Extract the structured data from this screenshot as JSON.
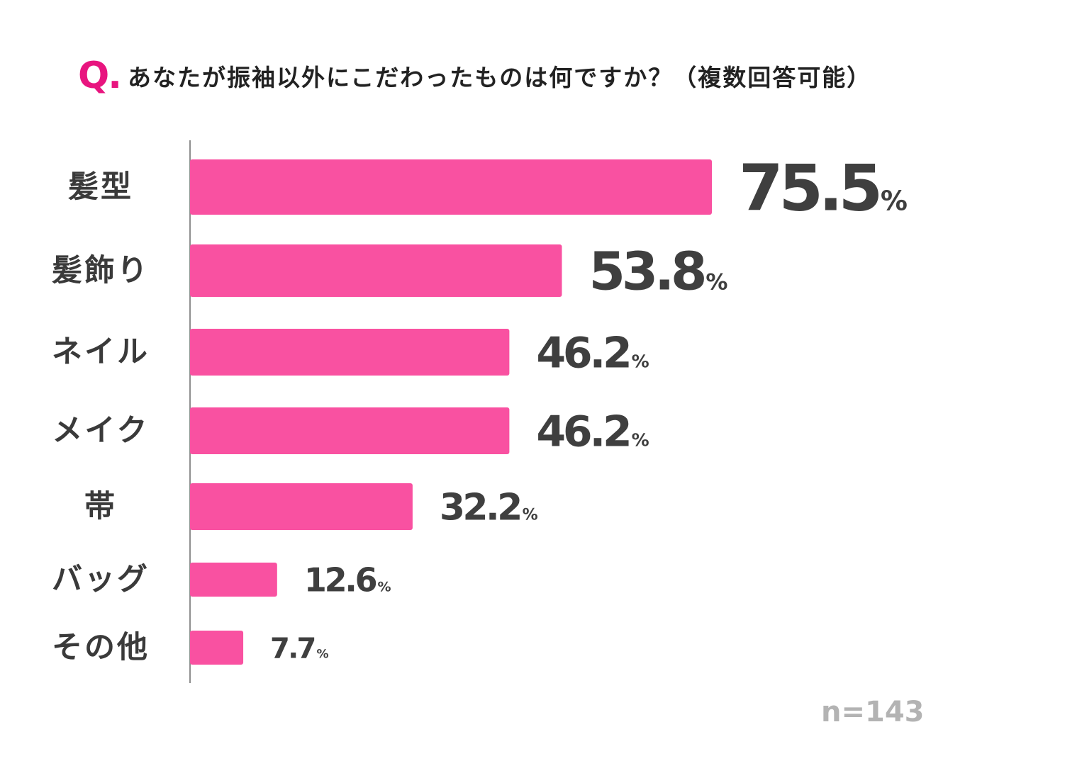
{
  "title": {
    "prefix": "Q.",
    "text": "あなたが振袖以外にこだわったものは何ですか？（複数回答可能）"
  },
  "sample_size": "n=143",
  "colors": {
    "accent": "#e8157f",
    "bar": "#f951a1",
    "label": "#3a3a3a",
    "sample_size": "#b3b3b3"
  },
  "chart_data": {
    "type": "bar",
    "orientation": "horizontal",
    "title": "あなたが振袖以外にこだわったものは何ですか？（複数回答可能）",
    "categories": [
      "髪型",
      "髪飾り",
      "ネイル",
      "メイク",
      "帯",
      "バッグ",
      "その他"
    ],
    "values": [
      75.5,
      53.8,
      46.2,
      46.2,
      32.2,
      12.6,
      7.7
    ],
    "value_labels": [
      "75.5",
      "53.8",
      "46.2",
      "46.2",
      "32.2",
      "12.6",
      "7.7"
    ],
    "unit": "%",
    "xlabel": "",
    "ylabel": "",
    "xlim": [
      0,
      100
    ],
    "grid": false
  }
}
